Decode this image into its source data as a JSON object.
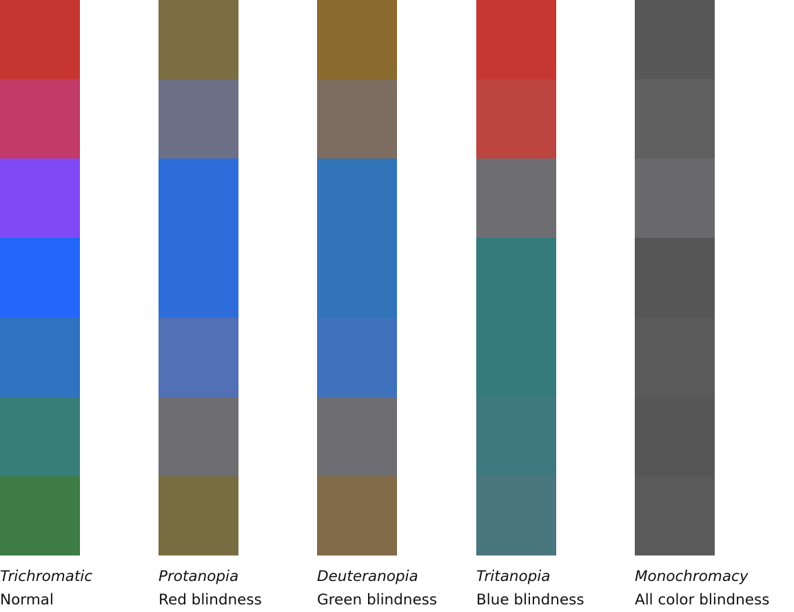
{
  "columns": [
    {
      "name": "Trichromatic",
      "description": "Normal",
      "swatches": [
        "#c63630",
        "#c13a68",
        "#8149f6",
        "#2367fa",
        "#2f72c0",
        "#377e78",
        "#3d7c44"
      ]
    },
    {
      "name": "Protanopia",
      "description": "Red blindness",
      "swatches": [
        "#7a6e42",
        "#6c7187",
        "#2d6dd9",
        "#2d6dd9",
        "#5170b6",
        "#6e6e72",
        "#786d41"
      ]
    },
    {
      "name": "Deuteranopia",
      "description": "Green blindness",
      "swatches": [
        "#8a6a2f",
        "#7d6d60",
        "#3174b8",
        "#3174b8",
        "#3f72bd",
        "#6d6d72",
        "#826b48"
      ]
    },
    {
      "name": "Tritanopia",
      "description": "Blue blindness",
      "swatches": [
        "#c73731",
        "#bc4541",
        "#6e6e72",
        "#357a7d",
        "#357a7d",
        "#3f7980",
        "#4a777d"
      ]
    },
    {
      "name": "Monochromacy",
      "description": "All color blindness",
      "swatches": [
        "#585858",
        "#5f5f5f",
        "#69696b",
        "#565656",
        "#5a5a5a",
        "#565656",
        "#5a5a5a"
      ]
    }
  ]
}
